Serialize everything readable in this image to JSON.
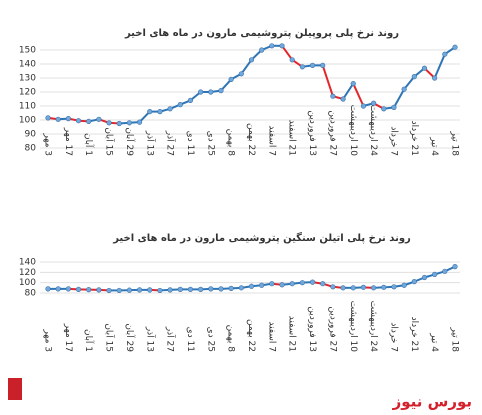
{
  "chart_data": [
    {
      "type": "line",
      "title": "روند نرخ پلی پروپیلن پتروشیمی مارون در ماه های اخیر",
      "categories": [
        "3 مهر",
        null,
        "17 مهر",
        null,
        "1 آبان",
        null,
        "15 آبان",
        null,
        "29 آبان",
        null,
        "13 آذر",
        null,
        "27 آذر",
        null,
        "11 دی",
        null,
        "25 دی",
        null,
        "8 بهمن",
        null,
        "22 بهمن",
        null,
        "7 اسفند",
        null,
        "21 اسفند",
        null,
        "13 فروردین",
        null,
        "27 فروردین",
        null,
        "10 اردیبهشت",
        null,
        "24 اردیبهشت",
        null,
        "7 خرداد",
        null,
        "21 خرداد",
        null,
        "4 تیر",
        null,
        "18 تیر"
      ],
      "values": [
        101.5,
        100.5,
        101,
        99.5,
        99,
        100.5,
        98,
        97.5,
        98,
        98.5,
        106,
        106,
        108,
        111,
        114,
        120,
        120,
        121,
        129,
        133,
        143,
        150,
        153,
        153,
        143,
        138,
        139,
        139,
        117,
        115,
        126,
        110,
        112,
        108,
        109,
        122,
        131,
        137,
        130,
        147,
        152
      ],
      "ylim": [
        80,
        150
      ],
      "yticks": [
        80,
        90,
        100,
        110,
        120,
        130,
        140,
        150
      ],
      "grid": true,
      "colors": {
        "up": "#2e75b6",
        "down": "#e3262b",
        "marker": "#6fa8dc"
      }
    },
    {
      "type": "line",
      "title": "روند نرخ پلی اتیلن سنگین پتروشیمی مارون در ماه های اخیر",
      "categories": [
        "3 مهر",
        null,
        "17 مهر",
        null,
        "1 آبان",
        null,
        "15 آبان",
        null,
        "29 آبان",
        null,
        "13 آذر",
        null,
        "27 آذر",
        null,
        "11 دی",
        null,
        "25 دی",
        null,
        "8 بهمن",
        null,
        "22 بهمن",
        null,
        "7 اسفند",
        null,
        "21 اسفند",
        null,
        "13 فروردین",
        null,
        "27 فروردین",
        null,
        "10 اردیبهشت",
        null,
        "24 اردیبهشت",
        null,
        "7 خرداد",
        null,
        "21 خرداد",
        null,
        "4 تیر",
        null,
        "18 تیر"
      ],
      "values": [
        88,
        88,
        88,
        87,
        86.5,
        86,
        85,
        85,
        85.5,
        86,
        86,
        85,
        86,
        87,
        87,
        87,
        88,
        88,
        89,
        90,
        93,
        95,
        98,
        96,
        98,
        100,
        101,
        98,
        92,
        90,
        90,
        91,
        90,
        91,
        92,
        95,
        102,
        110,
        116,
        122,
        131
      ],
      "ylim": [
        80,
        140
      ],
      "yticks": [
        80,
        100,
        120,
        140
      ],
      "grid": true,
      "colors": {
        "up": "#2e75b6",
        "down": "#e3262b",
        "marker": "#6fa8dc"
      }
    }
  ],
  "watermark": "بورس نیوز"
}
